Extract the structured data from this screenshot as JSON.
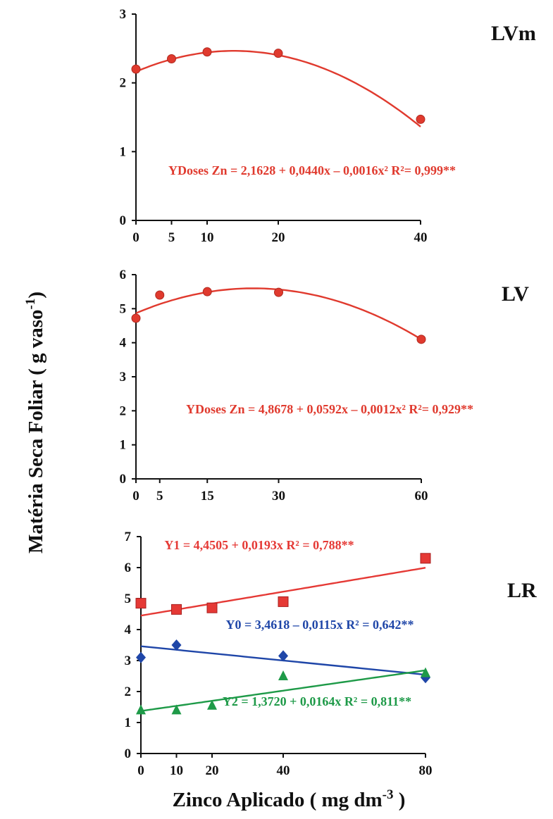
{
  "colors": {
    "axis": "#111111",
    "LVm": "#e03a2e",
    "LV": "#e03a2e",
    "Y1": "#e53935",
    "Y0": "#1f46a8",
    "Y2": "#1e9a48"
  },
  "chart_data": [
    {
      "type": "scatter",
      "panel_label": "LVm",
      "x_ticks": [
        0,
        5,
        10,
        20,
        40
      ],
      "y_ticks": [
        0,
        1,
        2,
        3
      ],
      "xlim": [
        0,
        40
      ],
      "ylim": [
        0,
        3
      ],
      "series": [
        {
          "key": "LVm",
          "marker": "circle",
          "points": [
            [
              0,
              2.2
            ],
            [
              5,
              2.35
            ],
            [
              10,
              2.45
            ],
            [
              20,
              2.43
            ],
            [
              40,
              1.47
            ]
          ],
          "fit": {
            "kind": "quadratic",
            "coef": [
              2.1628,
              0.044,
              -0.0016
            ]
          },
          "equation": "YDoses Zn = 2,1628 + 0,0440x – 0,0016x² R²= 0,999**"
        }
      ]
    },
    {
      "type": "scatter",
      "panel_label": "LV",
      "x_ticks": [
        0,
        5,
        15,
        30,
        60
      ],
      "y_ticks": [
        0,
        1,
        2,
        3,
        4,
        5,
        6
      ],
      "xlim": [
        0,
        60
      ],
      "ylim": [
        0,
        6
      ],
      "series": [
        {
          "key": "LV",
          "marker": "circle",
          "points": [
            [
              0,
              4.72
            ],
            [
              5,
              5.4
            ],
            [
              15,
              5.5
            ],
            [
              30,
              5.48
            ],
            [
              60,
              4.1
            ]
          ],
          "fit": {
            "kind": "quadratic",
            "coef": [
              4.8678,
              0.0592,
              -0.0012
            ]
          },
          "equation": "YDoses Zn = 4,8678 + 0,0592x – 0,0012x² R²= 0,929**"
        }
      ]
    },
    {
      "type": "scatter",
      "panel_label": "LR",
      "x_ticks": [
        0,
        10,
        20,
        40,
        80
      ],
      "y_ticks": [
        0,
        1,
        2,
        3,
        4,
        5,
        6,
        7
      ],
      "xlim": [
        0,
        80
      ],
      "ylim": [
        0,
        7
      ],
      "series": [
        {
          "key": "Y1",
          "marker": "square",
          "points": [
            [
              0,
              4.85
            ],
            [
              10,
              4.65
            ],
            [
              20,
              4.7
            ],
            [
              40,
              4.9
            ],
            [
              80,
              6.3
            ]
          ],
          "fit": {
            "kind": "linear",
            "coef": [
              4.4505,
              0.0193
            ]
          },
          "equation": "Y1 = 4,4505 + 0,0193x R² = 0,788**"
        },
        {
          "key": "Y0",
          "marker": "diamond",
          "points": [
            [
              0,
              3.1
            ],
            [
              10,
              3.5
            ],
            [
              40,
              3.15
            ],
            [
              80,
              2.45
            ]
          ],
          "fit": {
            "kind": "linear",
            "coef": [
              3.4618,
              -0.0115
            ]
          },
          "equation": "Y0 = 3,4618 – 0,0115x R² = 0,642**"
        },
        {
          "key": "Y2",
          "marker": "triangle",
          "points": [
            [
              0,
              1.4
            ],
            [
              10,
              1.4
            ],
            [
              20,
              1.55
            ],
            [
              40,
              2.5
            ],
            [
              80,
              2.6
            ]
          ],
          "fit": {
            "kind": "linear",
            "coef": [
              1.372,
              0.0164
            ]
          },
          "equation": "Y2 = 1,3720 + 0,0164x R² = 0,811**"
        }
      ]
    }
  ],
  "y_axis_title": "Matéria Seca Foliar ( g vaso",
  "y_axis_title_sup": "-1",
  "y_axis_title_end": ")",
  "x_axis_title": "Zinco Aplicado ( mg  dm",
  "x_axis_title_sup": "-3",
  "x_axis_title_end": " )"
}
